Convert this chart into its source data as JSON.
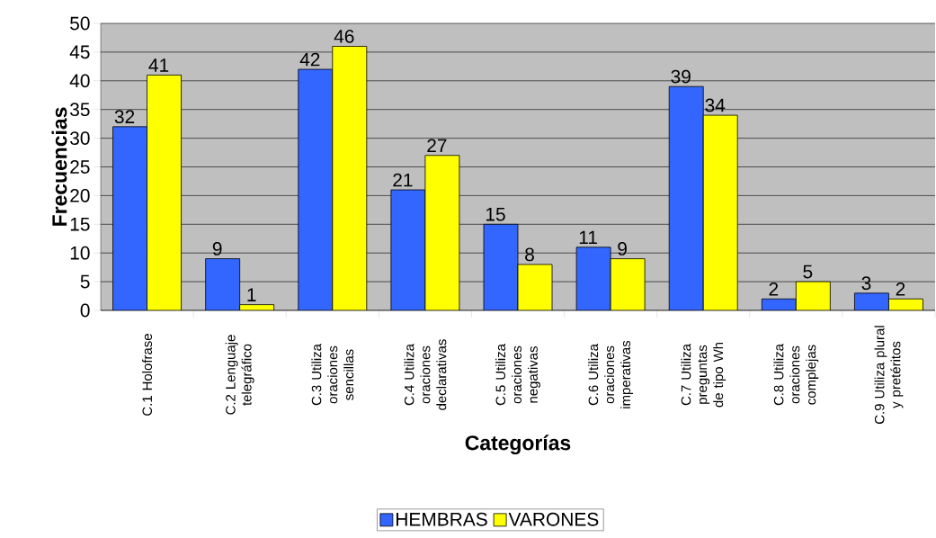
{
  "chart_data": {
    "type": "bar",
    "xlabel": "Categorías",
    "ylabel": "Frecuencias",
    "categories": [
      "C.1 Holofrase",
      "C.2 Lenguaje telegráfico",
      "C.3 Utiliza oraciones sencillas",
      "C.4 Utiliza oraciones declarativas",
      "C.5 Utiliza oraciones negativas",
      "C.6 Utiliza oraciones imperativas",
      "C.7 Utiliza preguntas de tipo Wh",
      "C.8 Utiliza oraciones complejas",
      "C.9 Utiliza plural y pretéritos"
    ],
    "series": [
      {
        "name": "HEMBRAS",
        "color": "#3366ff",
        "values": [
          32,
          9,
          42,
          21,
          15,
          11,
          39,
          2,
          3
        ]
      },
      {
        "name": "VARONES",
        "color": "#ffff00",
        "values": [
          41,
          1,
          46,
          27,
          8,
          9,
          34,
          5,
          2
        ]
      }
    ],
    "ylim": [
      0,
      50
    ],
    "yticks": [
      0,
      5,
      10,
      15,
      20,
      25,
      30,
      35,
      40,
      45,
      50
    ],
    "grid": "y",
    "legend": "bottom",
    "data_labels": true
  }
}
